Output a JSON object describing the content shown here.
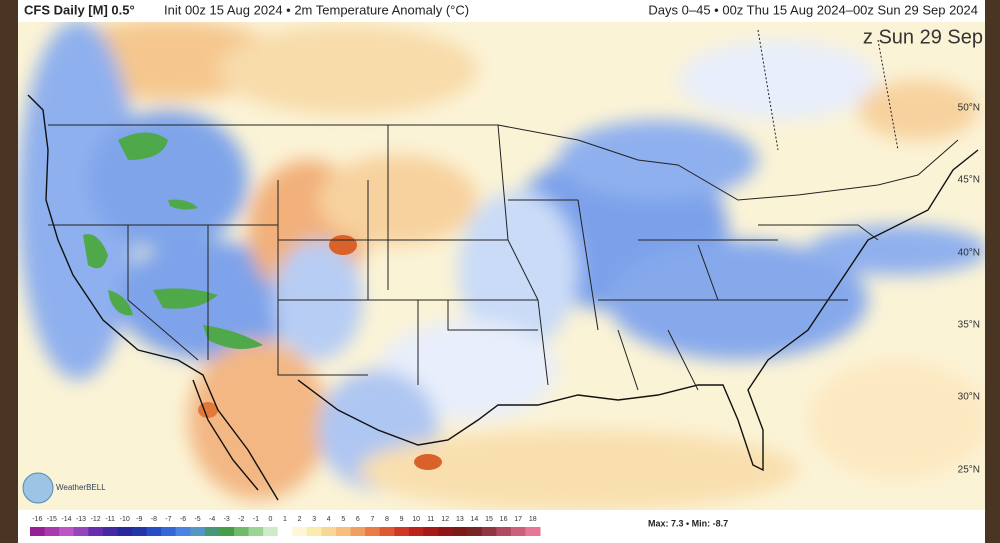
{
  "header": {
    "left_bold": "CFS Daily [M] 0.5°",
    "left": "Init 00z 15 Aug 2024 • 2m Temperature Anomaly (°C)",
    "right": "Days 0–45 • 00z Thu 15 Aug 2024–00z Sun 29 Sep 2024"
  },
  "map": {
    "valid_label": "z Sun 29 Sep",
    "latitudes": [
      "50°N",
      "45°N",
      "40°N",
      "35°N",
      "30°N",
      "25°N"
    ],
    "logo": "WeatherBELL"
  },
  "colorbar": {
    "labels": [
      -16,
      -15,
      -14,
      -13,
      -12,
      -11,
      -10,
      -9,
      -8,
      -7,
      -6,
      -5,
      -4,
      -3,
      -2,
      -1,
      0,
      1,
      2,
      3,
      4,
      5,
      6,
      7,
      8,
      9,
      10,
      11,
      12,
      13,
      14,
      15,
      16,
      17,
      18
    ]
  },
  "stats": {
    "text": "Max: 7.3 • Min: -8.7"
  }
}
